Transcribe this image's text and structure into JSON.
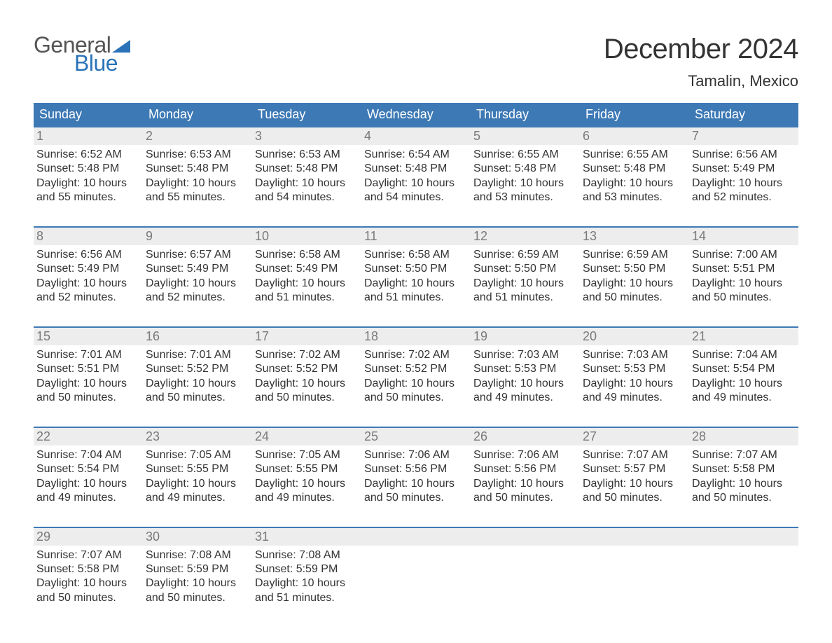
{
  "logo": {
    "top": "General",
    "bottom": "Blue",
    "flag_color": "#2a73b8"
  },
  "title": "December 2024",
  "location": "Tamalin, Mexico",
  "colors": {
    "header_bg": "#3d79b5",
    "header_text": "#ffffff",
    "week_border": "#3d79b5",
    "daynum_bg": "#ededed",
    "daynum_text": "#7a7a7a",
    "body_text": "#333333",
    "page_bg": "#ffffff",
    "logo_top": "#555555",
    "logo_bottom": "#2a73b8"
  },
  "day_labels": [
    "Sunday",
    "Monday",
    "Tuesday",
    "Wednesday",
    "Thursday",
    "Friday",
    "Saturday"
  ],
  "labels": {
    "sunrise": "Sunrise:",
    "sunset": "Sunset:",
    "daylight": "Daylight:"
  },
  "weeks": [
    [
      {
        "n": "1",
        "sr": "6:52 AM",
        "ss": "5:48 PM",
        "dl": "10 hours and 55 minutes."
      },
      {
        "n": "2",
        "sr": "6:53 AM",
        "ss": "5:48 PM",
        "dl": "10 hours and 55 minutes."
      },
      {
        "n": "3",
        "sr": "6:53 AM",
        "ss": "5:48 PM",
        "dl": "10 hours and 54 minutes."
      },
      {
        "n": "4",
        "sr": "6:54 AM",
        "ss": "5:48 PM",
        "dl": "10 hours and 54 minutes."
      },
      {
        "n": "5",
        "sr": "6:55 AM",
        "ss": "5:48 PM",
        "dl": "10 hours and 53 minutes."
      },
      {
        "n": "6",
        "sr": "6:55 AM",
        "ss": "5:48 PM",
        "dl": "10 hours and 53 minutes."
      },
      {
        "n": "7",
        "sr": "6:56 AM",
        "ss": "5:49 PM",
        "dl": "10 hours and 52 minutes."
      }
    ],
    [
      {
        "n": "8",
        "sr": "6:56 AM",
        "ss": "5:49 PM",
        "dl": "10 hours and 52 minutes."
      },
      {
        "n": "9",
        "sr": "6:57 AM",
        "ss": "5:49 PM",
        "dl": "10 hours and 52 minutes."
      },
      {
        "n": "10",
        "sr": "6:58 AM",
        "ss": "5:49 PM",
        "dl": "10 hours and 51 minutes."
      },
      {
        "n": "11",
        "sr": "6:58 AM",
        "ss": "5:50 PM",
        "dl": "10 hours and 51 minutes."
      },
      {
        "n": "12",
        "sr": "6:59 AM",
        "ss": "5:50 PM",
        "dl": "10 hours and 51 minutes."
      },
      {
        "n": "13",
        "sr": "6:59 AM",
        "ss": "5:50 PM",
        "dl": "10 hours and 50 minutes."
      },
      {
        "n": "14",
        "sr": "7:00 AM",
        "ss": "5:51 PM",
        "dl": "10 hours and 50 minutes."
      }
    ],
    [
      {
        "n": "15",
        "sr": "7:01 AM",
        "ss": "5:51 PM",
        "dl": "10 hours and 50 minutes."
      },
      {
        "n": "16",
        "sr": "7:01 AM",
        "ss": "5:52 PM",
        "dl": "10 hours and 50 minutes."
      },
      {
        "n": "17",
        "sr": "7:02 AM",
        "ss": "5:52 PM",
        "dl": "10 hours and 50 minutes."
      },
      {
        "n": "18",
        "sr": "7:02 AM",
        "ss": "5:52 PM",
        "dl": "10 hours and 50 minutes."
      },
      {
        "n": "19",
        "sr": "7:03 AM",
        "ss": "5:53 PM",
        "dl": "10 hours and 49 minutes."
      },
      {
        "n": "20",
        "sr": "7:03 AM",
        "ss": "5:53 PM",
        "dl": "10 hours and 49 minutes."
      },
      {
        "n": "21",
        "sr": "7:04 AM",
        "ss": "5:54 PM",
        "dl": "10 hours and 49 minutes."
      }
    ],
    [
      {
        "n": "22",
        "sr": "7:04 AM",
        "ss": "5:54 PM",
        "dl": "10 hours and 49 minutes."
      },
      {
        "n": "23",
        "sr": "7:05 AM",
        "ss": "5:55 PM",
        "dl": "10 hours and 49 minutes."
      },
      {
        "n": "24",
        "sr": "7:05 AM",
        "ss": "5:55 PM",
        "dl": "10 hours and 49 minutes."
      },
      {
        "n": "25",
        "sr": "7:06 AM",
        "ss": "5:56 PM",
        "dl": "10 hours and 50 minutes."
      },
      {
        "n": "26",
        "sr": "7:06 AM",
        "ss": "5:56 PM",
        "dl": "10 hours and 50 minutes."
      },
      {
        "n": "27",
        "sr": "7:07 AM",
        "ss": "5:57 PM",
        "dl": "10 hours and 50 minutes."
      },
      {
        "n": "28",
        "sr": "7:07 AM",
        "ss": "5:58 PM",
        "dl": "10 hours and 50 minutes."
      }
    ],
    [
      {
        "n": "29",
        "sr": "7:07 AM",
        "ss": "5:58 PM",
        "dl": "10 hours and 50 minutes."
      },
      {
        "n": "30",
        "sr": "7:08 AM",
        "ss": "5:59 PM",
        "dl": "10 hours and 50 minutes."
      },
      {
        "n": "31",
        "sr": "7:08 AM",
        "ss": "5:59 PM",
        "dl": "10 hours and 51 minutes."
      },
      null,
      null,
      null,
      null
    ]
  ]
}
